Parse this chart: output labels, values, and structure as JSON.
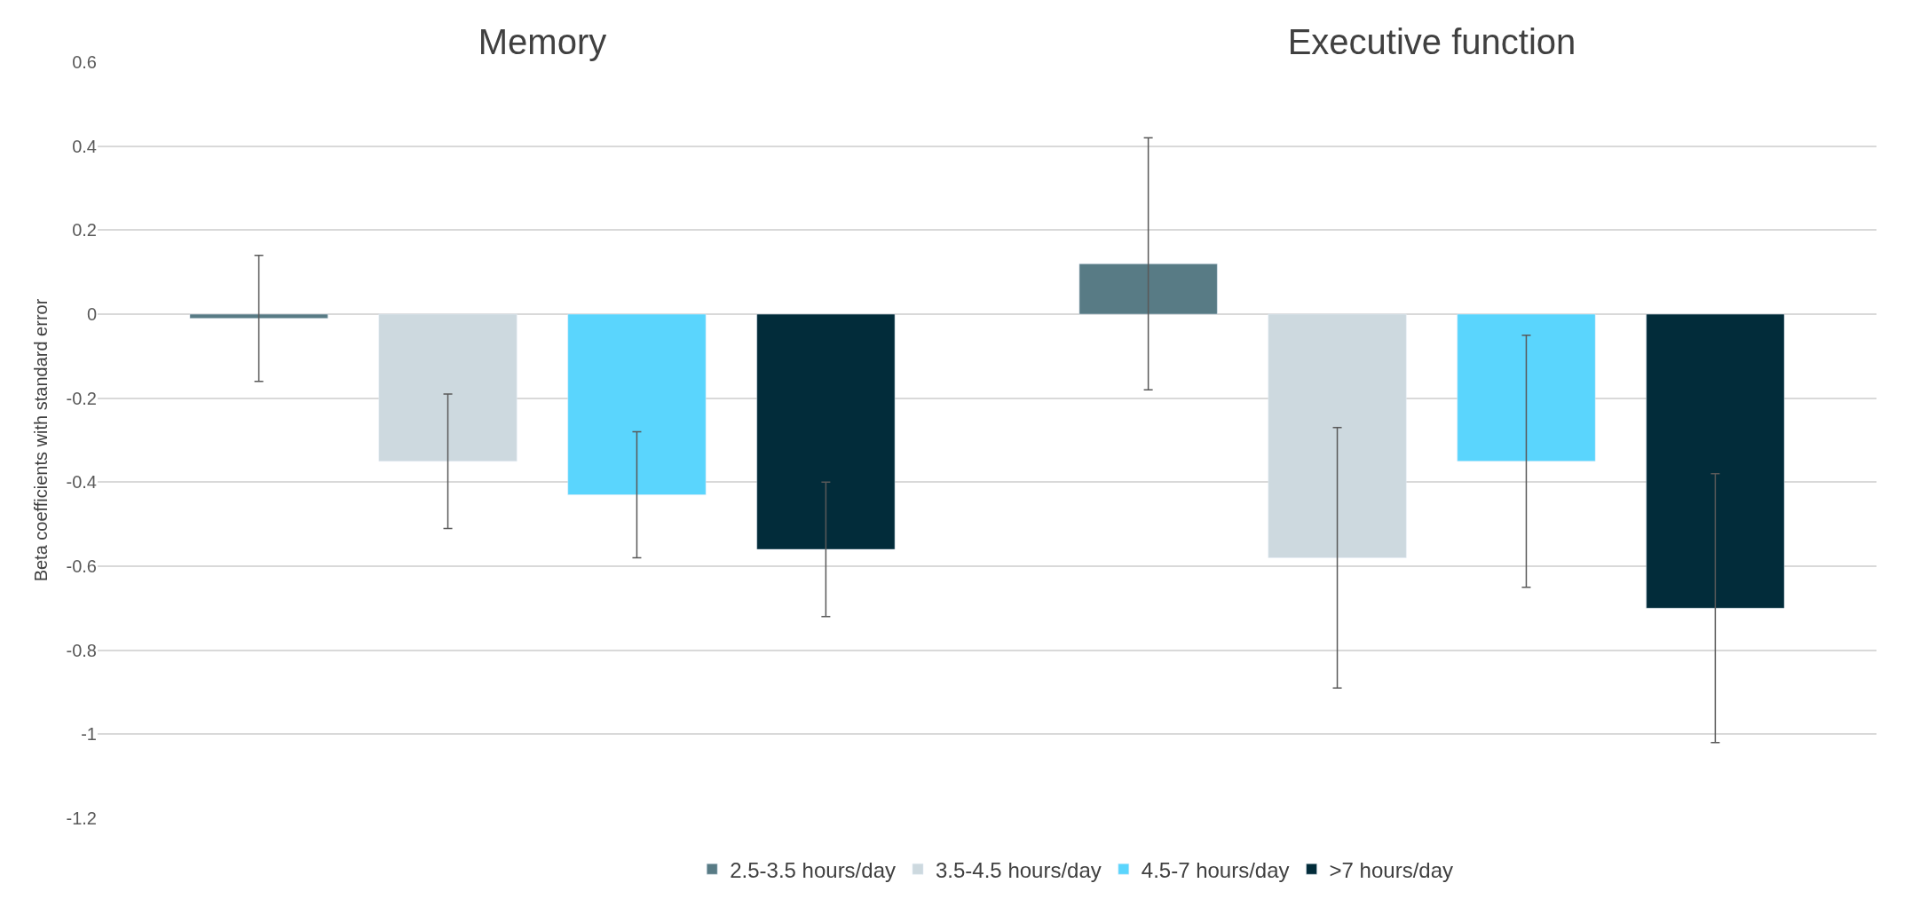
{
  "chart_data": {
    "type": "bar",
    "ylabel": "Beta coefficients with standard error",
    "categories": [
      "Memory",
      "Executive function"
    ],
    "series": [
      {
        "name": "2.5-3.5 hours/day",
        "color": "#587b85",
        "values": [
          -0.01,
          0.12
        ],
        "errors": [
          [
            -0.16,
            0.14
          ],
          [
            -0.18,
            0.42
          ]
        ]
      },
      {
        "name": "3.5-4.5 hours/day",
        "color": "#cdd9df",
        "values": [
          -0.35,
          -0.58
        ],
        "errors": [
          [
            -0.51,
            -0.19
          ],
          [
            -0.89,
            -0.27
          ]
        ]
      },
      {
        "name": "4.5-7 hours/day",
        "color": "#5ad5fd",
        "values": [
          -0.43,
          -0.35
        ],
        "errors": [
          [
            -0.58,
            -0.28
          ],
          [
            -0.65,
            -0.05
          ]
        ]
      },
      {
        "name": ">7 hours/day",
        "color": "#022c3a",
        "values": [
          -0.56,
          -0.7
        ],
        "errors": [
          [
            -0.72,
            -0.4
          ],
          [
            -1.02,
            -0.38
          ]
        ]
      }
    ],
    "ylim": [
      -1.2,
      0.6
    ],
    "yticks": [
      -1.2,
      -1,
      -0.8,
      -0.6,
      -0.4,
      -0.2,
      0,
      0.2,
      0.4,
      0.6
    ],
    "grid": "y",
    "legend": "bottom"
  }
}
